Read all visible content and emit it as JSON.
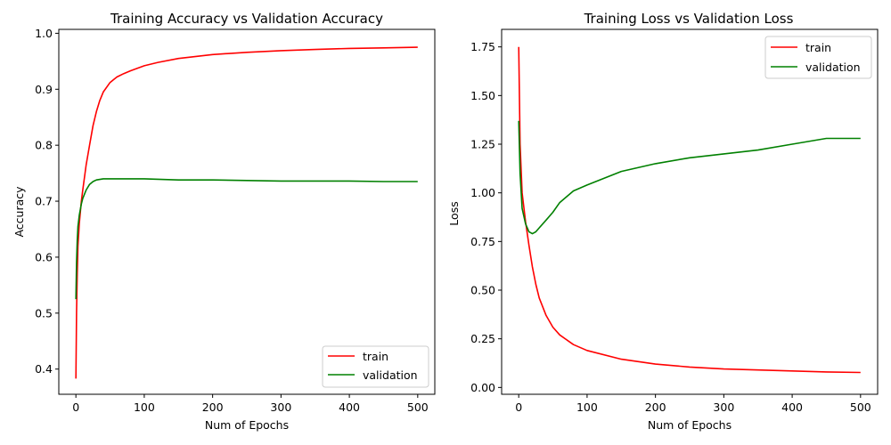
{
  "chart_data": [
    {
      "type": "line",
      "title": "Training Accuracy vs Validation Accuracy",
      "xlabel": "Num of Epochs",
      "ylabel": "Accuracy",
      "xlim": [
        -25,
        525
      ],
      "ylim": [
        0.355,
        1.007
      ],
      "xticks": [
        0,
        100,
        200,
        300,
        400,
        500
      ],
      "yticks": [
        0.4,
        0.5,
        0.6,
        0.7,
        0.8,
        0.9,
        1.0
      ],
      "ytick_labels": [
        "0.4",
        "0.5",
        "0.6",
        "0.7",
        "0.8",
        "0.9",
        "1.0"
      ],
      "legend_position": "lower-right",
      "series": [
        {
          "name": "train",
          "color": "#ff0000",
          "x": [
            0,
            1,
            2,
            3,
            5,
            8,
            10,
            15,
            20,
            25,
            30,
            35,
            40,
            50,
            60,
            70,
            80,
            100,
            120,
            150,
            200,
            250,
            300,
            350,
            400,
            450,
            500
          ],
          "values": [
            0.383,
            0.5,
            0.57,
            0.62,
            0.66,
            0.7,
            0.72,
            0.765,
            0.8,
            0.835,
            0.86,
            0.88,
            0.895,
            0.912,
            0.922,
            0.928,
            0.933,
            0.942,
            0.948,
            0.955,
            0.962,
            0.966,
            0.969,
            0.971,
            0.973,
            0.974,
            0.975
          ]
        },
        {
          "name": "validation",
          "color": "#008000",
          "x": [
            0,
            1,
            2,
            3,
            5,
            8,
            10,
            15,
            20,
            25,
            30,
            40,
            60,
            80,
            100,
            150,
            200,
            250,
            300,
            350,
            400,
            450,
            500
          ],
          "values": [
            0.525,
            0.59,
            0.63,
            0.655,
            0.675,
            0.695,
            0.705,
            0.72,
            0.73,
            0.735,
            0.738,
            0.74,
            0.74,
            0.74,
            0.74,
            0.738,
            0.738,
            0.737,
            0.736,
            0.736,
            0.736,
            0.735,
            0.735
          ]
        }
      ]
    },
    {
      "type": "line",
      "title": "Training Loss vs Validation Loss",
      "xlabel": "Num of Epochs",
      "ylabel": "Loss",
      "xlim": [
        -25,
        525
      ],
      "ylim": [
        -0.035,
        1.84
      ],
      "xticks": [
        0,
        100,
        200,
        300,
        400,
        500
      ],
      "yticks": [
        0.0,
        0.25,
        0.5,
        0.75,
        1.0,
        1.25,
        1.5,
        1.75
      ],
      "ytick_labels": [
        "0.00",
        "0.25",
        "0.50",
        "0.75",
        "1.00",
        "1.25",
        "1.50",
        "1.75"
      ],
      "legend_position": "upper-right",
      "series": [
        {
          "name": "train",
          "color": "#ff0000",
          "x": [
            0,
            2,
            5,
            10,
            15,
            20,
            25,
            30,
            40,
            50,
            60,
            80,
            100,
            150,
            200,
            250,
            300,
            350,
            400,
            450,
            500
          ],
          "values": [
            1.75,
            1.25,
            1.0,
            0.85,
            0.73,
            0.62,
            0.53,
            0.46,
            0.37,
            0.31,
            0.27,
            0.22,
            0.19,
            0.145,
            0.12,
            0.105,
            0.095,
            0.09,
            0.085,
            0.08,
            0.077
          ]
        },
        {
          "name": "validation",
          "color": "#008000",
          "x": [
            0,
            2,
            5,
            10,
            15,
            20,
            25,
            30,
            40,
            50,
            60,
            80,
            100,
            150,
            200,
            250,
            300,
            350,
            400,
            450,
            500
          ],
          "values": [
            1.37,
            1.1,
            0.92,
            0.84,
            0.8,
            0.79,
            0.8,
            0.82,
            0.86,
            0.9,
            0.95,
            1.01,
            1.04,
            1.11,
            1.15,
            1.18,
            1.2,
            1.22,
            1.25,
            1.28,
            1.28
          ]
        }
      ]
    }
  ]
}
